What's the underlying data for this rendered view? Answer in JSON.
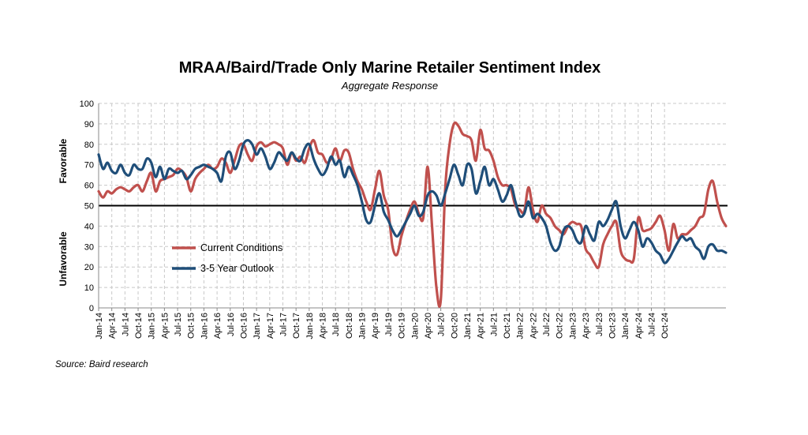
{
  "chart_data": {
    "type": "line",
    "title": "MRAA/Baird/Trade Only Marine Retailer Sentiment Index",
    "subtitle": "Aggregate Response",
    "source": "Source: Baird research",
    "ylabel_upper": "Favorable",
    "ylabel_lower": "Unfavorable",
    "ylim": [
      0,
      100
    ],
    "yticks": [
      0,
      10,
      20,
      30,
      40,
      50,
      60,
      70,
      80,
      90,
      100
    ],
    "reference_line": 50,
    "grid": true,
    "legend_position": "lower-left",
    "x_start": "Jan-14",
    "x_tick_labels": [
      "Jan-14",
      "Apr-14",
      "Jul-14",
      "Oct-14",
      "Jan-15",
      "Apr-15",
      "Jul-15",
      "Oct-15",
      "Jan-16",
      "Apr-16",
      "Jul-16",
      "Oct-16",
      "Jan-17",
      "Apr-17",
      "Jul-17",
      "Oct-17",
      "Jan-18",
      "Apr-18",
      "Jul-18",
      "Oct-18",
      "Jan-19",
      "Apr-19",
      "Jul-19",
      "Oct-19",
      "Jan-20",
      "Apr-20",
      "Jul-20",
      "Oct-20",
      "Jan-21",
      "Apr-21",
      "Jul-21",
      "Oct-21",
      "Jan-22",
      "Apr-22",
      "Jul-22",
      "Oct-22",
      "Jan-23",
      "Apr-23",
      "Jul-23",
      "Oct-23",
      "Jan-24",
      "Apr-24",
      "Jul-24",
      "Oct-24"
    ],
    "series": [
      {
        "name": "Current Conditions",
        "color": "#c0504d",
        "values": [
          57,
          54,
          57,
          56,
          58,
          59,
          58,
          57,
          59,
          60,
          57,
          62,
          66,
          57,
          62,
          63,
          64,
          65,
          68,
          67,
          64,
          57,
          63,
          66,
          68,
          70,
          68,
          69,
          73,
          71,
          66,
          72,
          79,
          80,
          75,
          72,
          79,
          81,
          79,
          80,
          81,
          80,
          78,
          70,
          76,
          72,
          74,
          71,
          78,
          82,
          76,
          75,
          71,
          73,
          78,
          72,
          77,
          76,
          68,
          62,
          58,
          52,
          48,
          58,
          67,
          55,
          48,
          30,
          26,
          35,
          42,
          48,
          52,
          46,
          44,
          69,
          40,
          10,
          4,
          58,
          80,
          90,
          89,
          85,
          84,
          82,
          72,
          87,
          78,
          77,
          72,
          64,
          60,
          60,
          58,
          50,
          48,
          47,
          59,
          48,
          42,
          50,
          46,
          44,
          40,
          38,
          36,
          40,
          42,
          41,
          40,
          29,
          26,
          22,
          20,
          31,
          36,
          40,
          42,
          28,
          24,
          23,
          24,
          44,
          38,
          38,
          39,
          42,
          45,
          38,
          28,
          41,
          34,
          36,
          36,
          38,
          40,
          44,
          46,
          58,
          62,
          52,
          44,
          40
        ]
      },
      {
        "name": "3-5 Year Outlook",
        "color": "#1f4e79",
        "values": [
          75,
          68,
          71,
          67,
          66,
          70,
          66,
          65,
          70,
          68,
          68,
          73,
          71,
          64,
          69,
          63,
          68,
          67,
          66,
          67,
          63,
          65,
          68,
          69,
          70,
          69,
          68,
          66,
          62,
          74,
          76,
          68,
          72,
          80,
          82,
          80,
          75,
          78,
          74,
          68,
          71,
          76,
          74,
          72,
          76,
          73,
          72,
          78,
          80,
          73,
          68,
          65,
          68,
          74,
          70,
          72,
          64,
          69,
          65,
          60,
          52,
          43,
          42,
          50,
          56,
          47,
          43,
          38,
          35,
          38,
          42,
          46,
          50,
          45,
          47,
          55,
          57,
          55,
          50,
          56,
          63,
          70,
          65,
          60,
          70,
          68,
          56,
          62,
          69,
          60,
          63,
          58,
          52,
          55,
          60,
          52,
          45,
          46,
          52,
          44,
          46,
          44,
          40,
          32,
          28,
          30,
          38,
          40,
          38,
          33,
          32,
          40,
          36,
          33,
          42,
          40,
          43,
          48,
          52,
          40,
          34,
          38,
          42,
          38,
          30,
          34,
          32,
          28,
          26,
          22,
          24,
          28,
          32,
          35,
          33,
          34,
          30,
          28,
          24,
          30,
          31,
          28,
          28,
          27
        ]
      }
    ]
  }
}
